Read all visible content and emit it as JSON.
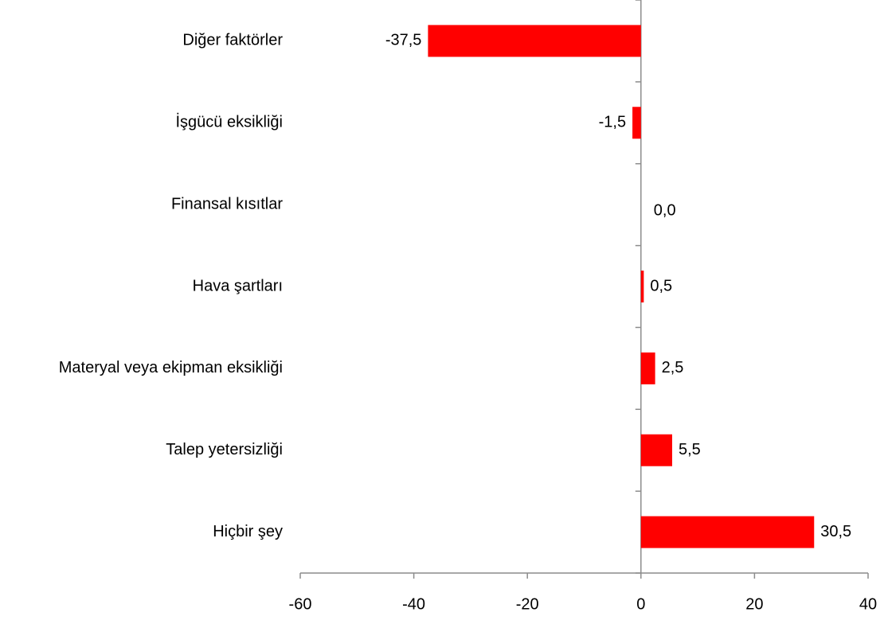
{
  "chart_data": {
    "type": "barh",
    "categories": [
      "Diğer faktörler",
      "İşgücü eksikliği",
      "Finansal kısıtlar",
      "Hava şartları",
      "Materyal veya ekipman eksikliği",
      "Talep yetersizliği",
      "Hiçbir şey"
    ],
    "values": [
      -37.5,
      -1.5,
      0.0,
      0.5,
      2.5,
      5.5,
      30.5
    ],
    "value_labels": [
      "-37,5",
      "-1,5",
      "0,0",
      "0,5",
      "2,5",
      "5,5",
      "30,5"
    ],
    "color": "#ff0000",
    "xlim": [
      -60,
      40
    ],
    "xticks": [
      -60,
      -40,
      -20,
      0,
      20,
      40
    ]
  }
}
